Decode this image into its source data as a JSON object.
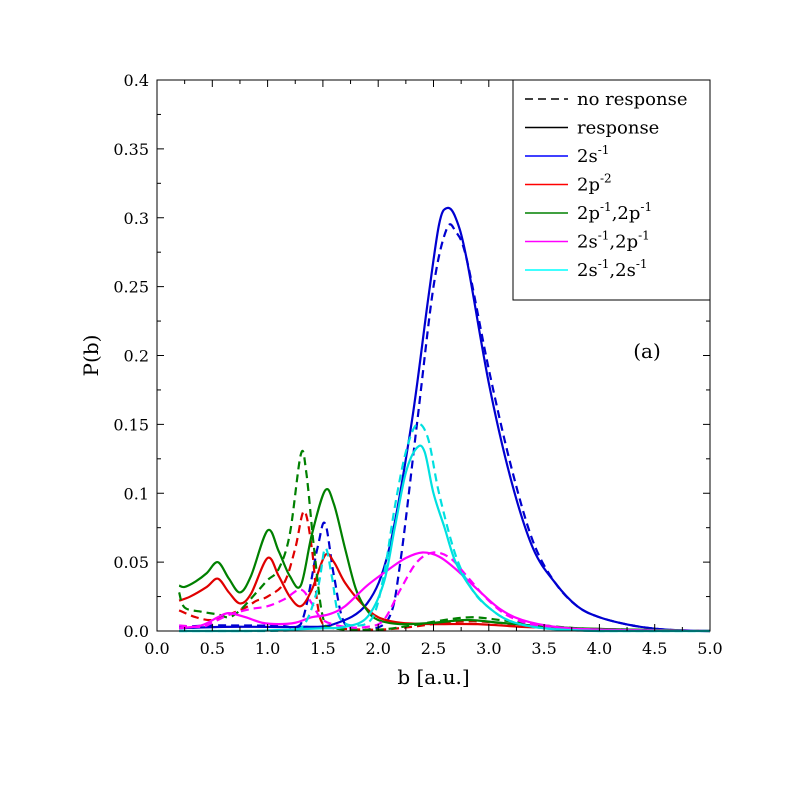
{
  "chart_data": {
    "type": "line",
    "title": "",
    "xlabel": "b [a.u.]",
    "ylabel": "P(b)",
    "panel_label": "(a)",
    "xlim": [
      0.0,
      5.0
    ],
    "ylim": [
      0.0,
      0.4
    ],
    "x_ticks": [
      0.0,
      0.5,
      1.0,
      1.5,
      2.0,
      2.5,
      3.0,
      3.5,
      4.0,
      4.5,
      5.0
    ],
    "x_tick_labels": [
      "0.0",
      "0.5",
      "1.0",
      "1.5",
      "2.0",
      "2.5",
      "3.0",
      "3.5",
      "4.0",
      "4.5",
      "5.0"
    ],
    "y_ticks": [
      0.0,
      0.05,
      0.1,
      0.15,
      0.2,
      0.25,
      0.3,
      0.35,
      0.4
    ],
    "y_tick_labels": [
      "0.0",
      "0.05",
      "0.1",
      "0.15",
      "0.2",
      "0.25",
      "0.3",
      "0.35",
      "0.4"
    ],
    "grid": false,
    "legend_position": "top-right",
    "legend": [
      {
        "text": "no response",
        "sup": [],
        "color": "#000000",
        "dash": true
      },
      {
        "text": "response",
        "sup": [],
        "color": "#000000",
        "dash": false
      },
      {
        "text": "2s",
        "sup": [
          "-1"
        ],
        "color": "#0000ff",
        "dash": false
      },
      {
        "text": "2p",
        "sup": [
          "-2"
        ],
        "color": "#ff0000",
        "dash": false
      },
      {
        "text": "2p,2p",
        "sup": [
          "-1",
          "-1"
        ],
        "color": "#008000",
        "dash": false
      },
      {
        "text": "2s,2p",
        "sup": [
          "-1",
          "-1"
        ],
        "color": "#ff00ff",
        "dash": false
      },
      {
        "text": "2s,2s",
        "sup": [
          "-1",
          "-1"
        ],
        "color": "#00ffff",
        "dash": false
      }
    ],
    "series": [
      {
        "name": "2s^-1 response",
        "color": "#0000d0",
        "dash": false,
        "points": [
          [
            0.2,
            0.002
          ],
          [
            0.6,
            0.003
          ],
          [
            1.0,
            0.003
          ],
          [
            1.3,
            0.003
          ],
          [
            1.6,
            0.005
          ],
          [
            1.9,
            0.02
          ],
          [
            2.1,
            0.06
          ],
          [
            2.3,
            0.15
          ],
          [
            2.45,
            0.24
          ],
          [
            2.55,
            0.295
          ],
          [
            2.62,
            0.307
          ],
          [
            2.7,
            0.3
          ],
          [
            2.8,
            0.27
          ],
          [
            3.0,
            0.18
          ],
          [
            3.2,
            0.11
          ],
          [
            3.4,
            0.06
          ],
          [
            3.6,
            0.035
          ],
          [
            3.8,
            0.018
          ],
          [
            4.0,
            0.01
          ],
          [
            4.3,
            0.004
          ],
          [
            4.6,
            0.001
          ],
          [
            5.0,
            0.0
          ]
        ]
      },
      {
        "name": "2s^-1 no response",
        "color": "#0000d0",
        "dash": true,
        "points": [
          [
            0.2,
            0.003
          ],
          [
            0.5,
            0.004
          ],
          [
            0.8,
            0.004
          ],
          [
            1.1,
            0.004
          ],
          [
            1.3,
            0.005
          ],
          [
            1.45,
            0.06
          ],
          [
            1.52,
            0.078
          ],
          [
            1.6,
            0.04
          ],
          [
            1.7,
            0.005
          ],
          [
            1.9,
            0.001
          ],
          [
            2.1,
            0.01
          ],
          [
            2.2,
            0.05
          ],
          [
            2.35,
            0.15
          ],
          [
            2.5,
            0.25
          ],
          [
            2.62,
            0.292
          ],
          [
            2.7,
            0.29
          ],
          [
            2.8,
            0.27
          ],
          [
            3.0,
            0.19
          ],
          [
            3.2,
            0.12
          ],
          [
            3.4,
            0.065
          ],
          [
            3.6,
            0.035
          ],
          [
            3.8,
            0.018
          ],
          [
            4.0,
            0.01
          ],
          [
            4.3,
            0.004
          ],
          [
            4.6,
            0.001
          ],
          [
            5.0,
            0.0
          ]
        ]
      },
      {
        "name": "2p^-2 response",
        "color": "#e00000",
        "dash": false,
        "points": [
          [
            0.2,
            0.022
          ],
          [
            0.3,
            0.025
          ],
          [
            0.45,
            0.032
          ],
          [
            0.55,
            0.038
          ],
          [
            0.65,
            0.028
          ],
          [
            0.75,
            0.02
          ],
          [
            0.85,
            0.027
          ],
          [
            1.0,
            0.053
          ],
          [
            1.1,
            0.04
          ],
          [
            1.2,
            0.025
          ],
          [
            1.3,
            0.018
          ],
          [
            1.4,
            0.03
          ],
          [
            1.52,
            0.055
          ],
          [
            1.6,
            0.05
          ],
          [
            1.7,
            0.035
          ],
          [
            1.85,
            0.02
          ],
          [
            2.0,
            0.01
          ],
          [
            2.2,
            0.006
          ],
          [
            2.5,
            0.005
          ],
          [
            2.9,
            0.005
          ],
          [
            3.3,
            0.003
          ],
          [
            3.7,
            0.002
          ],
          [
            4.2,
            0.001
          ],
          [
            5.0,
            0.0
          ]
        ]
      },
      {
        "name": "2p^-2 no response",
        "color": "#e00000",
        "dash": true,
        "points": [
          [
            0.2,
            0.015
          ],
          [
            0.35,
            0.01
          ],
          [
            0.5,
            0.008
          ],
          [
            0.65,
            0.012
          ],
          [
            0.8,
            0.017
          ],
          [
            0.9,
            0.022
          ],
          [
            1.0,
            0.025
          ],
          [
            1.15,
            0.035
          ],
          [
            1.25,
            0.06
          ],
          [
            1.33,
            0.087
          ],
          [
            1.4,
            0.06
          ],
          [
            1.45,
            0.02
          ],
          [
            1.5,
            0.005
          ],
          [
            1.6,
            0.002
          ],
          [
            2.0,
            0.001
          ],
          [
            2.3,
            0.003
          ],
          [
            2.6,
            0.006
          ],
          [
            2.9,
            0.007
          ],
          [
            3.2,
            0.005
          ],
          [
            3.6,
            0.002
          ],
          [
            4.0,
            0.001
          ],
          [
            5.0,
            0.0
          ]
        ]
      },
      {
        "name": "2p^-1,2p^-1 response",
        "color": "#008000",
        "dash": false,
        "points": [
          [
            0.2,
            0.033
          ],
          [
            0.25,
            0.032
          ],
          [
            0.35,
            0.036
          ],
          [
            0.45,
            0.042
          ],
          [
            0.55,
            0.05
          ],
          [
            0.65,
            0.038
          ],
          [
            0.75,
            0.028
          ],
          [
            0.85,
            0.04
          ],
          [
            1.0,
            0.073
          ],
          [
            1.1,
            0.058
          ],
          [
            1.2,
            0.04
          ],
          [
            1.3,
            0.033
          ],
          [
            1.4,
            0.07
          ],
          [
            1.52,
            0.102
          ],
          [
            1.6,
            0.092
          ],
          [
            1.7,
            0.06
          ],
          [
            1.8,
            0.03
          ],
          [
            1.9,
            0.015
          ],
          [
            2.0,
            0.008
          ],
          [
            2.2,
            0.005
          ],
          [
            2.5,
            0.006
          ],
          [
            2.8,
            0.008
          ],
          [
            3.1,
            0.006
          ],
          [
            3.4,
            0.004
          ],
          [
            3.8,
            0.002
          ],
          [
            4.3,
            0.001
          ],
          [
            5.0,
            0.0
          ]
        ]
      },
      {
        "name": "2p^-1,2p^-1 no response",
        "color": "#008000",
        "dash": true,
        "points": [
          [
            0.2,
            0.028
          ],
          [
            0.25,
            0.017
          ],
          [
            0.4,
            0.014
          ],
          [
            0.55,
            0.012
          ],
          [
            0.65,
            0.01
          ],
          [
            0.75,
            0.015
          ],
          [
            0.9,
            0.028
          ],
          [
            1.0,
            0.037
          ],
          [
            1.1,
            0.045
          ],
          [
            1.2,
            0.07
          ],
          [
            1.3,
            0.128
          ],
          [
            1.35,
            0.115
          ],
          [
            1.42,
            0.06
          ],
          [
            1.5,
            0.01
          ],
          [
            1.6,
            0.002
          ],
          [
            2.0,
            0.001
          ],
          [
            2.3,
            0.004
          ],
          [
            2.6,
            0.008
          ],
          [
            2.85,
            0.01
          ],
          [
            3.1,
            0.008
          ],
          [
            3.4,
            0.005
          ],
          [
            3.8,
            0.002
          ],
          [
            4.3,
            0.001
          ],
          [
            5.0,
            0.0
          ]
        ]
      },
      {
        "name": "2s^-1,2p^-1 response",
        "color": "#ff00ff",
        "dash": false,
        "points": [
          [
            0.2,
            0.002
          ],
          [
            0.4,
            0.004
          ],
          [
            0.55,
            0.01
          ],
          [
            0.65,
            0.013
          ],
          [
            0.8,
            0.01
          ],
          [
            0.95,
            0.006
          ],
          [
            1.1,
            0.005
          ],
          [
            1.25,
            0.006
          ],
          [
            1.4,
            0.01
          ],
          [
            1.55,
            0.012
          ],
          [
            1.7,
            0.018
          ],
          [
            1.9,
            0.033
          ],
          [
            2.1,
            0.045
          ],
          [
            2.25,
            0.053
          ],
          [
            2.4,
            0.057
          ],
          [
            2.55,
            0.054
          ],
          [
            2.7,
            0.045
          ],
          [
            2.9,
            0.03
          ],
          [
            3.1,
            0.016
          ],
          [
            3.3,
            0.008
          ],
          [
            3.6,
            0.003
          ],
          [
            4.0,
            0.001
          ],
          [
            5.0,
            0.0
          ]
        ]
      },
      {
        "name": "2s^-1,2p^-1 no response",
        "color": "#ff00ff",
        "dash": true,
        "points": [
          [
            0.2,
            0.004
          ],
          [
            0.4,
            0.003
          ],
          [
            0.5,
            0.006
          ],
          [
            0.6,
            0.01
          ],
          [
            0.7,
            0.013
          ],
          [
            0.85,
            0.016
          ],
          [
            1.0,
            0.018
          ],
          [
            1.15,
            0.023
          ],
          [
            1.3,
            0.03
          ],
          [
            1.4,
            0.02
          ],
          [
            1.5,
            0.008
          ],
          [
            1.7,
            0.003
          ],
          [
            1.9,
            0.003
          ],
          [
            2.05,
            0.008
          ],
          [
            2.2,
            0.03
          ],
          [
            2.35,
            0.05
          ],
          [
            2.5,
            0.057
          ],
          [
            2.65,
            0.053
          ],
          [
            2.8,
            0.04
          ],
          [
            3.0,
            0.022
          ],
          [
            3.2,
            0.01
          ],
          [
            3.5,
            0.003
          ],
          [
            4.0,
            0.001
          ],
          [
            5.0,
            0.0
          ]
        ]
      },
      {
        "name": "2s^-1,2s^-1 response",
        "color": "#00e0e0",
        "dash": false,
        "points": [
          [
            0.2,
            0.0
          ],
          [
            0.8,
            0.0
          ],
          [
            1.2,
            0.001
          ],
          [
            1.5,
            0.002
          ],
          [
            1.7,
            0.003
          ],
          [
            1.9,
            0.01
          ],
          [
            2.05,
            0.035
          ],
          [
            2.15,
            0.075
          ],
          [
            2.25,
            0.115
          ],
          [
            2.35,
            0.133
          ],
          [
            2.42,
            0.13
          ],
          [
            2.5,
            0.1
          ],
          [
            2.6,
            0.075
          ],
          [
            2.7,
            0.05
          ],
          [
            2.85,
            0.03
          ],
          [
            3.0,
            0.017
          ],
          [
            3.2,
            0.007
          ],
          [
            3.5,
            0.002
          ],
          [
            4.0,
            0.0
          ],
          [
            5.0,
            0.0
          ]
        ]
      },
      {
        "name": "2s^-1,2s^-1 no response",
        "color": "#00e0e0",
        "dash": true,
        "points": [
          [
            0.2,
            0.0
          ],
          [
            1.0,
            0.0
          ],
          [
            1.3,
            0.002
          ],
          [
            1.45,
            0.03
          ],
          [
            1.52,
            0.06
          ],
          [
            1.58,
            0.04
          ],
          [
            1.65,
            0.01
          ],
          [
            1.8,
            0.004
          ],
          [
            1.95,
            0.01
          ],
          [
            2.05,
            0.04
          ],
          [
            2.15,
            0.09
          ],
          [
            2.25,
            0.13
          ],
          [
            2.35,
            0.15
          ],
          [
            2.45,
            0.14
          ],
          [
            2.55,
            0.1
          ],
          [
            2.7,
            0.055
          ],
          [
            2.85,
            0.03
          ],
          [
            3.0,
            0.017
          ],
          [
            3.2,
            0.007
          ],
          [
            3.5,
            0.002
          ],
          [
            4.0,
            0.0
          ],
          [
            5.0,
            0.0
          ]
        ]
      }
    ]
  }
}
